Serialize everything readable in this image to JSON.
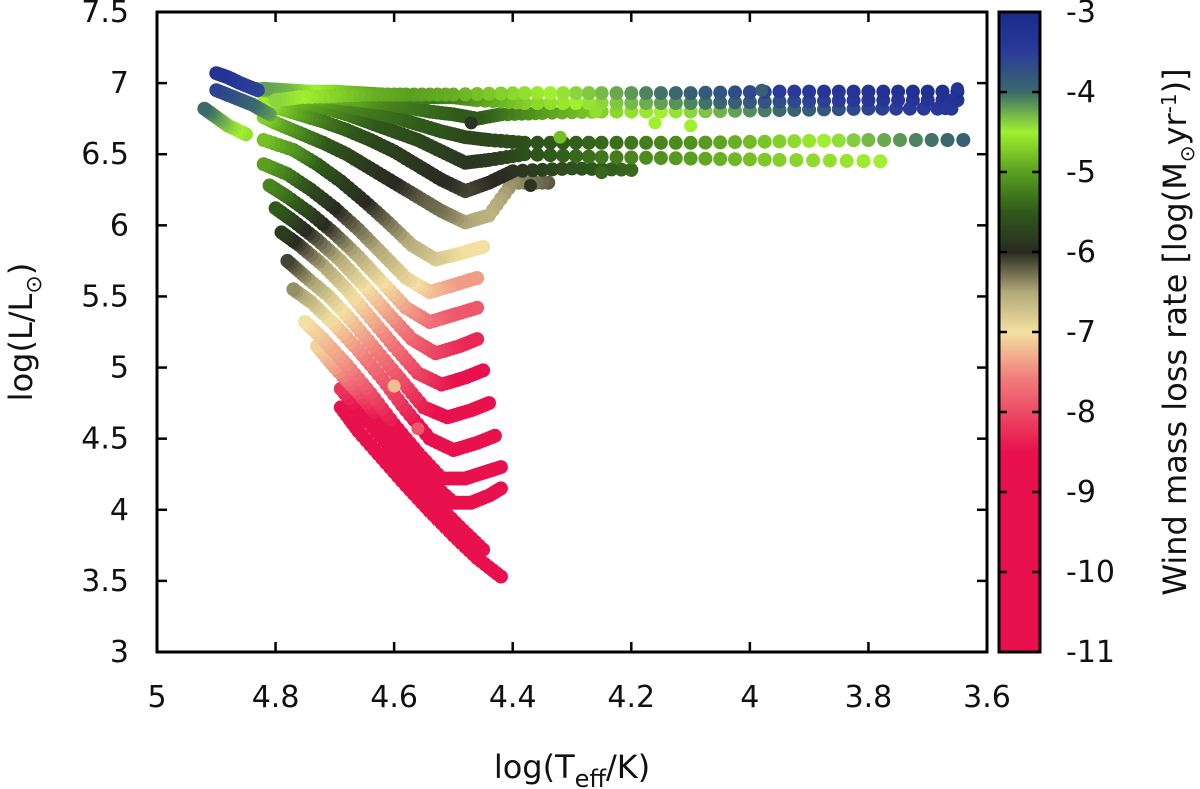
{
  "chart_data": {
    "type": "scatter",
    "xlabel": {
      "main": "log(T",
      "sub": "eff",
      "tail": "/K)"
    },
    "ylabel": {
      "main": "log(L/L",
      "sub": "⊙",
      "tail": ")"
    },
    "colorbar_label": {
      "pre": "Wind mass loss rate [log(M",
      "sub": "⊙",
      "mid": "yr",
      "sup": "-1",
      "tail": ")]"
    },
    "xlim": [
      5,
      3.6
    ],
    "ylim": [
      3,
      7.5
    ],
    "zlim": [
      -11,
      -3
    ],
    "x_ticks": [
      5,
      4.8,
      4.6,
      4.4,
      4.2,
      4,
      3.8,
      3.6
    ],
    "x_tick_labels": [
      "5",
      "4.8",
      "4.6",
      "4.4",
      "4.2",
      "4",
      "3.8",
      "3.6"
    ],
    "y_ticks": [
      3,
      3.5,
      4,
      4.5,
      5,
      5.5,
      6,
      6.5,
      7,
      7.5
    ],
    "y_tick_labels": [
      "3",
      "3.5",
      "4",
      "4.5",
      "5",
      "5.5",
      "6",
      "6.5",
      "7",
      "7.5"
    ],
    "z_ticks": [
      -3,
      -4,
      -5,
      -6,
      -7,
      -8,
      -9,
      -10,
      -11
    ],
    "z_tick_labels": [
      "-3",
      "-4",
      "-5",
      "-6",
      "-7",
      "-8",
      "-9",
      "-10",
      "-11"
    ],
    "colorscale": [
      {
        "z": -11,
        "color": "#e8114d"
      },
      {
        "z": -8.5,
        "color": "#e8114d"
      },
      {
        "z": -7.6,
        "color": "#f07a7a"
      },
      {
        "z": -7.0,
        "color": "#f3e0a0"
      },
      {
        "z": -6.5,
        "color": "#b0a878"
      },
      {
        "z": -6.0,
        "color": "#2a2a22"
      },
      {
        "z": -5.5,
        "color": "#2f5a1a"
      },
      {
        "z": -5.0,
        "color": "#5aa020"
      },
      {
        "z": -4.5,
        "color": "#a0f030"
      },
      {
        "z": -4.0,
        "color": "#3a6a6a"
      },
      {
        "z": -3.5,
        "color": "#2a3a9a"
      },
      {
        "z": -3.0,
        "color": "#1a2a8a"
      }
    ],
    "tracks": [
      {
        "x": [
          4.42,
          4.46,
          4.5,
          4.54,
          4.58,
          4.62,
          4.66,
          4.69
        ],
        "y": [
          3.53,
          3.66,
          3.82,
          3.99,
          4.17,
          4.36,
          4.55,
          4.72
        ],
        "z": [
          -9.5,
          -9.5,
          -9.4,
          -9.3,
          -9.2,
          -9.1,
          -8.9,
          -8.8
        ],
        "end_y": 4.85,
        "end_x": 4.74
      },
      {
        "x": [
          4.45,
          4.49,
          4.53,
          4.57,
          4.61,
          4.65,
          4.69
        ],
        "y": [
          3.72,
          3.88,
          4.05,
          4.25,
          4.45,
          4.65,
          4.85
        ],
        "z": [
          -9.4,
          -9.4,
          -9.3,
          -9.2,
          -9.0,
          -8.7,
          -8.2
        ]
      },
      {
        "x": [
          4.42,
          4.44,
          4.47,
          4.5,
          4.54,
          4.58,
          4.62,
          4.66,
          4.7,
          4.73
        ],
        "y": [
          4.15,
          4.1,
          4.05,
          4.05,
          4.2,
          4.4,
          4.62,
          4.82,
          5.0,
          5.15
        ],
        "z": [
          -9.3,
          -9.3,
          -9.3,
          -9.2,
          -9.1,
          -8.9,
          -8.6,
          -8.0,
          -7.4,
          -7.1
        ]
      },
      {
        "x": [
          4.42,
          4.45,
          4.48,
          4.52,
          4.56,
          4.6,
          4.64,
          4.68,
          4.72,
          4.75
        ],
        "y": [
          4.3,
          4.26,
          4.22,
          4.22,
          4.4,
          4.6,
          4.82,
          5.02,
          5.2,
          5.32
        ],
        "z": [
          -9.2,
          -9.2,
          -9.2,
          -9.1,
          -8.9,
          -8.5,
          -8.0,
          -7.5,
          -7.2,
          -7.0
        ]
      },
      {
        "x": [
          4.43,
          4.46,
          4.5,
          4.54,
          4.58,
          4.62,
          4.66,
          4.7,
          4.74,
          4.77
        ],
        "y": [
          4.52,
          4.47,
          4.42,
          4.5,
          4.7,
          4.92,
          5.12,
          5.3,
          5.46,
          5.55
        ],
        "z": [
          -9.0,
          -9.0,
          -8.9,
          -8.7,
          -8.3,
          -7.9,
          -7.5,
          -7.1,
          -6.7,
          -6.4
        ]
      },
      {
        "x": [
          4.44,
          4.47,
          4.51,
          4.55,
          4.59,
          4.63,
          4.67,
          4.71,
          4.75,
          4.78
        ],
        "y": [
          4.75,
          4.7,
          4.65,
          4.72,
          4.92,
          5.12,
          5.32,
          5.5,
          5.64,
          5.75
        ],
        "z": [
          -8.8,
          -8.8,
          -8.7,
          -8.4,
          -8.0,
          -7.6,
          -7.2,
          -6.8,
          -6.4,
          -6.1
        ]
      },
      {
        "x": [
          4.45,
          4.48,
          4.52,
          4.56,
          4.6,
          4.64,
          4.68,
          4.72,
          4.76,
          4.79
        ],
        "y": [
          4.98,
          4.93,
          4.88,
          4.96,
          5.15,
          5.35,
          5.55,
          5.72,
          5.86,
          5.95
        ],
        "z": [
          -8.6,
          -8.6,
          -8.4,
          -8.1,
          -7.7,
          -7.3,
          -6.9,
          -6.5,
          -6.1,
          -5.8
        ]
      },
      {
        "x": [
          4.46,
          4.49,
          4.53,
          4.57,
          4.61,
          4.65,
          4.69,
          4.73,
          4.77,
          4.8
        ],
        "y": [
          5.2,
          5.15,
          5.1,
          5.2,
          5.38,
          5.57,
          5.75,
          5.9,
          6.03,
          6.12
        ],
        "z": [
          -8.3,
          -8.3,
          -8.1,
          -7.8,
          -7.4,
          -7.0,
          -6.6,
          -6.2,
          -5.8,
          -5.5
        ]
      },
      {
        "x": [
          4.46,
          4.5,
          4.54,
          4.58,
          4.62,
          4.66,
          4.7,
          4.74,
          4.78,
          4.81
        ],
        "y": [
          5.42,
          5.37,
          5.32,
          5.42,
          5.6,
          5.78,
          5.94,
          6.08,
          6.2,
          6.28
        ],
        "z": [
          -7.9,
          -7.9,
          -7.7,
          -7.4,
          -7.0,
          -6.6,
          -6.2,
          -5.8,
          -5.4,
          -5.2
        ]
      },
      {
        "x": [
          4.46,
          4.5,
          4.54,
          4.58,
          4.62,
          4.66,
          4.7,
          4.74,
          4.78,
          4.82
        ],
        "y": [
          5.63,
          5.58,
          5.53,
          5.63,
          5.8,
          5.97,
          6.12,
          6.25,
          6.36,
          6.43
        ],
        "z": [
          -7.4,
          -7.4,
          -7.2,
          -6.9,
          -6.6,
          -6.3,
          -6.0,
          -5.7,
          -5.3,
          -5.0
        ]
      },
      {
        "x": [
          4.45,
          4.49,
          4.53,
          4.57,
          4.61,
          4.65,
          4.69,
          4.73,
          4.77,
          4.82
        ],
        "y": [
          5.85,
          5.8,
          5.76,
          5.86,
          6.02,
          6.17,
          6.31,
          6.43,
          6.53,
          6.6
        ],
        "z": [
          -7.0,
          -7.0,
          -6.8,
          -6.6,
          -6.3,
          -6.0,
          -5.8,
          -5.5,
          -5.1,
          -4.8
        ]
      },
      {
        "x": [
          4.34,
          4.4,
          4.44,
          4.48,
          4.52,
          4.56,
          4.6,
          4.64,
          4.68,
          4.72,
          4.76,
          4.8,
          4.82
        ],
        "y": [
          6.3,
          6.3,
          6.07,
          6.02,
          6.1,
          6.2,
          6.3,
          6.4,
          6.5,
          6.58,
          6.65,
          6.72,
          6.76
        ],
        "z": [
          -6.2,
          -6.4,
          -6.6,
          -6.5,
          -6.3,
          -6.2,
          -6.0,
          -5.9,
          -5.7,
          -5.5,
          -5.2,
          -4.9,
          -4.7
        ]
      },
      {
        "x": [
          4.2,
          4.3,
          4.4,
          4.44,
          4.48,
          4.52,
          4.56,
          4.6,
          4.64,
          4.68,
          4.72,
          4.76,
          4.8,
          4.82
        ],
        "y": [
          6.39,
          6.4,
          6.38,
          6.3,
          6.24,
          6.32,
          6.42,
          6.52,
          6.6,
          6.67,
          6.73,
          6.78,
          6.83,
          6.86
        ],
        "z": [
          -5.4,
          -5.6,
          -5.9,
          -6.0,
          -6.1,
          -6.0,
          -5.9,
          -5.8,
          -5.7,
          -5.5,
          -5.3,
          -5.0,
          -4.7,
          -4.5
        ]
      },
      {
        "x": [
          3.78,
          3.95,
          4.1,
          4.25,
          4.38,
          4.44,
          4.48,
          4.52,
          4.56,
          4.6,
          4.64,
          4.68,
          4.72,
          4.76,
          4.8,
          4.82
        ],
        "y": [
          6.45,
          6.46,
          6.47,
          6.48,
          6.5,
          6.46,
          6.44,
          6.52,
          6.6,
          6.66,
          6.72,
          6.78,
          6.83,
          6.87,
          6.9,
          6.92
        ],
        "z": [
          -4.5,
          -4.7,
          -5.0,
          -5.3,
          -5.6,
          -5.8,
          -5.9,
          -5.8,
          -5.7,
          -5.6,
          -5.5,
          -5.3,
          -5.1,
          -4.9,
          -4.7,
          -4.5
        ]
      },
      {
        "x": [
          3.64,
          3.8,
          3.95,
          4.1,
          4.25,
          4.38,
          4.44,
          4.48,
          4.52,
          4.56,
          4.6,
          4.64,
          4.68,
          4.72,
          4.76,
          4.8,
          4.83
        ],
        "y": [
          6.6,
          6.6,
          6.59,
          6.58,
          6.58,
          6.58,
          6.6,
          6.62,
          6.66,
          6.71,
          6.76,
          6.8,
          6.84,
          6.88,
          6.91,
          6.94,
          6.96
        ],
        "z": [
          -3.9,
          -4.3,
          -4.7,
          -5.1,
          -5.4,
          -5.6,
          -5.7,
          -5.7,
          -5.6,
          -5.5,
          -5.4,
          -5.3,
          -5.2,
          -5.0,
          -4.8,
          -4.6,
          -4.4
        ]
      },
      {
        "x": [
          3.66,
          3.8,
          3.95,
          4.1,
          4.25,
          4.35,
          4.42,
          4.46,
          4.5,
          4.54,
          4.58,
          4.62,
          4.66,
          4.7,
          4.74,
          4.78,
          4.82
        ],
        "y": [
          6.82,
          6.82,
          6.81,
          6.8,
          6.8,
          6.79,
          6.78,
          6.75,
          6.78,
          6.8,
          6.83,
          6.86,
          6.88,
          6.9,
          6.91,
          6.93,
          6.95
        ],
        "z": [
          -3.4,
          -3.6,
          -4.0,
          -4.4,
          -4.7,
          -5.0,
          -5.3,
          -5.5,
          -5.5,
          -5.4,
          -5.3,
          -5.2,
          -5.0,
          -4.9,
          -4.7,
          -4.5,
          -4.3
        ]
      },
      {
        "x": [
          3.65,
          3.8,
          3.95,
          4.1,
          4.25,
          4.38,
          4.46,
          4.5,
          4.54,
          4.58,
          4.62,
          4.66,
          4.7,
          4.74,
          4.78,
          4.82
        ],
        "y": [
          6.88,
          6.88,
          6.87,
          6.86,
          6.86,
          6.86,
          6.88,
          6.9,
          6.9,
          6.91,
          6.92,
          6.93,
          6.94,
          6.94,
          6.95,
          6.96
        ],
        "z": [
          -3.3,
          -3.4,
          -3.7,
          -4.1,
          -4.4,
          -4.7,
          -5.0,
          -5.2,
          -5.3,
          -5.2,
          -5.1,
          -4.9,
          -4.7,
          -4.5,
          -4.3,
          -4.2
        ]
      },
      {
        "x": [
          3.65,
          3.8,
          3.95,
          4.1,
          4.25,
          4.38,
          4.5,
          4.58,
          4.64,
          4.7,
          4.76,
          4.8
        ],
        "y": [
          6.94,
          6.94,
          6.94,
          6.93,
          6.93,
          6.93,
          6.92,
          6.92,
          6.92,
          6.91,
          6.9,
          6.88
        ],
        "z": [
          -3.2,
          -3.3,
          -3.5,
          -3.9,
          -4.3,
          -4.6,
          -4.9,
          -5.0,
          -4.9,
          -4.7,
          -4.5,
          -4.4
        ]
      },
      {
        "x": [
          4.83,
          4.86,
          4.88,
          4.9
        ],
        "y": [
          6.95,
          7.0,
          7.04,
          7.07
        ],
        "z": [
          -3.6,
          -3.5,
          -3.4,
          -3.3
        ]
      },
      {
        "x": [
          4.81,
          4.84,
          4.87,
          4.9
        ],
        "y": [
          6.78,
          6.85,
          6.9,
          6.95
        ],
        "z": [
          -4.2,
          -4.0,
          -3.8,
          -3.6
        ]
      },
      {
        "x": [
          4.85,
          4.88,
          4.9,
          4.92
        ],
        "y": [
          6.64,
          6.7,
          6.76,
          6.82
        ],
        "z": [
          -4.6,
          -4.4,
          -4.2,
          -4.0
        ]
      }
    ],
    "markers": [
      {
        "x": 3.98,
        "y": 6.95,
        "z": -3.9
      },
      {
        "x": 3.65,
        "y": 6.96,
        "z": -3.3
      },
      {
        "x": 3.66,
        "y": 6.88,
        "z": -3.3
      },
      {
        "x": 3.67,
        "y": 6.82,
        "z": -3.4
      },
      {
        "x": 3.64,
        "y": 6.6,
        "z": -3.9
      },
      {
        "x": 4.1,
        "y": 6.7,
        "z": -4.5
      },
      {
        "x": 4.16,
        "y": 6.72,
        "z": -4.5
      },
      {
        "x": 4.26,
        "y": 6.8,
        "z": -4.6
      },
      {
        "x": 4.32,
        "y": 6.62,
        "z": -4.8
      },
      {
        "x": 4.25,
        "y": 6.37,
        "z": -5.4
      },
      {
        "x": 4.37,
        "y": 6.28,
        "z": -5.9
      },
      {
        "x": 4.47,
        "y": 6.72,
        "z": -5.9
      },
      {
        "x": 4.9,
        "y": 7.07,
        "z": -3.3
      },
      {
        "x": 4.92,
        "y": 6.82,
        "z": -4.0
      },
      {
        "x": 4.6,
        "y": 4.87,
        "z": -7.2
      },
      {
        "x": 4.56,
        "y": 4.57,
        "z": -7.9
      }
    ]
  }
}
